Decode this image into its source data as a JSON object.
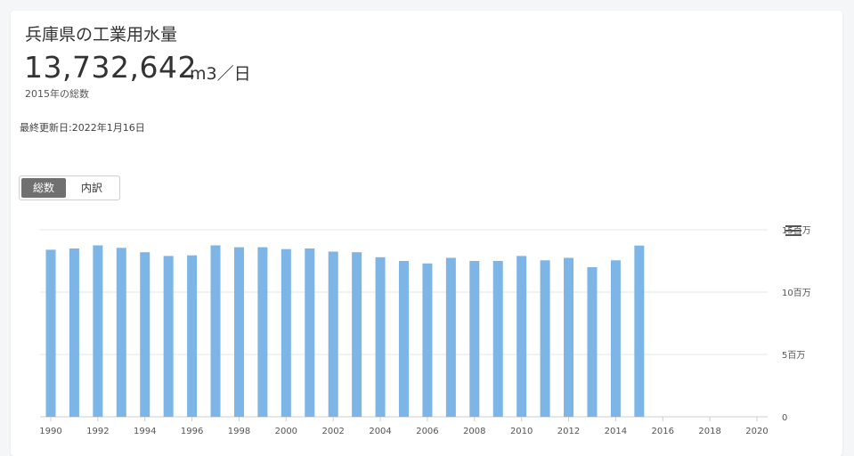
{
  "header": {
    "title": "兵庫県の工業用水量",
    "value": "13,732,642",
    "unit": "m3／日",
    "subtitle": "2015年の総数",
    "updated": "最終更新日:2022年1月16日"
  },
  "toggle": {
    "options": [
      "総数",
      "内訳"
    ],
    "selected": "総数"
  },
  "icons": {
    "menu": "hamburger-menu-icon"
  },
  "colors": {
    "bar": "#7cb5e6",
    "grid": "#e6e6e6",
    "axis_text": "#555555"
  },
  "chart_data": {
    "type": "bar",
    "title": "",
    "xlabel": "",
    "ylabel": "",
    "xlim": [
      1990,
      2020
    ],
    "ylim": [
      0,
      15000000
    ],
    "x": [
      1990,
      1991,
      1992,
      1993,
      1994,
      1995,
      1996,
      1997,
      1998,
      1999,
      2000,
      2001,
      2002,
      2003,
      2004,
      2005,
      2006,
      2007,
      2008,
      2009,
      2010,
      2011,
      2012,
      2013,
      2014,
      2015
    ],
    "values": [
      13400000,
      13500000,
      13750000,
      13550000,
      13200000,
      12900000,
      12950000,
      13750000,
      13600000,
      13600000,
      13450000,
      13500000,
      13250000,
      13200000,
      12800000,
      12500000,
      12300000,
      12750000,
      12500000,
      12500000,
      12900000,
      12550000,
      12750000,
      12000000,
      12550000,
      13732642
    ],
    "x_ticks": [
      "1990",
      "1992",
      "1994",
      "1996",
      "1998",
      "2000",
      "2002",
      "2004",
      "2006",
      "2008",
      "2010",
      "2012",
      "2014",
      "2016",
      "2018",
      "2020"
    ],
    "y_ticks": [
      {
        "value": 0,
        "label": "0"
      },
      {
        "value": 5000000,
        "label": "5百万"
      },
      {
        "value": 10000000,
        "label": "10百万"
      },
      {
        "value": 15000000,
        "label": "15百万"
      }
    ],
    "grid": true,
    "legend": "none"
  }
}
